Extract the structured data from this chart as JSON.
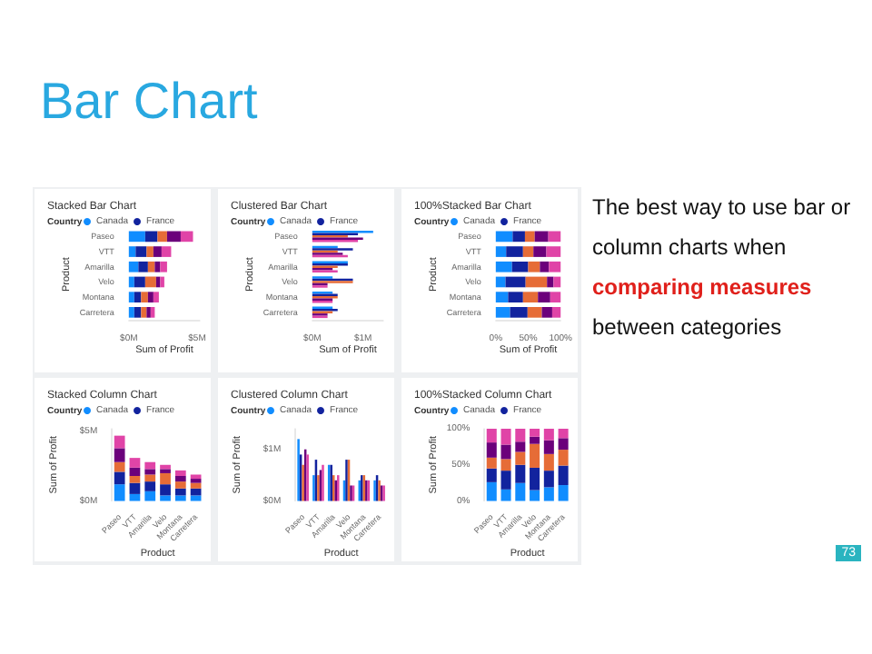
{
  "chart_data": [
    {
      "type": "other",
      "title": "Bar Chart",
      "annotations": [
        "The best way to use bar or column charts when",
        "comparing measures",
        "between categories",
        "73"
      ]
    },
    {
      "type": "bar",
      "orientation": "horizontal",
      "stacked": true,
      "title": "Stacked Bar Chart",
      "legend_title": "Country",
      "legend": "top left",
      "xlabel": "Sum of Profit",
      "ylabel": "Product",
      "categories": [
        "Paseo",
        "VTT",
        "Amarilla",
        "Velo",
        "Montana",
        "Carretera"
      ],
      "xlim": [
        0,
        5.2
      ],
      "xticks": [
        {
          "value": 0,
          "label": "$0M"
        },
        {
          "value": 5,
          "label": "$5M"
        }
      ],
      "series": [
        {
          "name": "Canada",
          "color": "#118dff",
          "values": [
            1.2,
            0.5,
            0.7,
            0.4,
            0.4,
            0.4
          ]
        },
        {
          "name": "France",
          "color": "#12239e",
          "values": [
            0.9,
            0.8,
            0.7,
            0.8,
            0.5,
            0.5
          ]
        },
        {
          "color": "#e66c37",
          "values": [
            0.7,
            0.5,
            0.5,
            0.8,
            0.5,
            0.4
          ]
        },
        {
          "color": "#6b007b",
          "values": [
            1.0,
            0.6,
            0.4,
            0.3,
            0.4,
            0.3
          ]
        },
        {
          "color": "#e044a7",
          "values": [
            0.9,
            0.7,
            0.5,
            0.3,
            0.4,
            0.3
          ]
        }
      ]
    },
    {
      "type": "bar",
      "orientation": "horizontal",
      "title": "Clustered Bar Chart",
      "legend_title": "Country",
      "legend": "top left",
      "xlabel": "Sum of Profit",
      "ylabel": "Product",
      "categories": [
        "Paseo",
        "VTT",
        "Amarilla",
        "Velo",
        "Montana",
        "Carretera"
      ],
      "xlim": [
        0,
        1.4
      ],
      "xticks": [
        {
          "value": 0,
          "label": "$0M"
        },
        {
          "value": 1,
          "label": "$1M"
        }
      ],
      "series": [
        {
          "name": "Canada",
          "color": "#118dff",
          "values": [
            1.2,
            0.5,
            0.7,
            0.4,
            0.4,
            0.4
          ]
        },
        {
          "name": "France",
          "color": "#12239e",
          "values": [
            0.9,
            0.8,
            0.7,
            0.8,
            0.5,
            0.5
          ]
        },
        {
          "color": "#e66c37",
          "values": [
            0.7,
            0.5,
            0.5,
            0.8,
            0.5,
            0.4
          ]
        },
        {
          "color": "#6b007b",
          "values": [
            1.0,
            0.6,
            0.4,
            0.3,
            0.4,
            0.3
          ]
        },
        {
          "color": "#e044a7",
          "values": [
            0.9,
            0.7,
            0.5,
            0.3,
            0.4,
            0.3
          ]
        }
      ]
    },
    {
      "type": "bar",
      "orientation": "horizontal",
      "stacked": true,
      "title": "100%Stacked Bar Chart",
      "legend_title": "Country",
      "legend": "top left",
      "xlabel": "Sum of Profit",
      "ylabel": "Product",
      "categories": [
        "Paseo",
        "VTT",
        "Amarilla",
        "Velo",
        "Montana",
        "Carretera"
      ],
      "xlim": [
        0,
        100
      ],
      "xticks": [
        {
          "value": 0,
          "label": "0%"
        },
        {
          "value": 50,
          "label": "50%"
        },
        {
          "value": 100,
          "label": "100%"
        }
      ],
      "series": [
        {
          "name": "Canada",
          "color": "#118dff",
          "values": [
            26,
            16,
            25,
            15,
            19,
            22
          ]
        },
        {
          "name": "France",
          "color": "#12239e",
          "values": [
            19,
            26,
            25,
            31,
            23,
            27
          ]
        },
        {
          "color": "#e66c37",
          "values": [
            15,
            16,
            18,
            33,
            23,
            22
          ]
        },
        {
          "color": "#6b007b",
          "values": [
            21,
            20,
            14,
            10,
            19,
            16
          ]
        },
        {
          "color": "#e044a7",
          "values": [
            19,
            22,
            18,
            11,
            16,
            13
          ]
        }
      ]
    },
    {
      "type": "bar",
      "stacked": true,
      "title": "Stacked Column Chart",
      "legend_title": "Country",
      "legend": "top left",
      "xlabel": "Product",
      "ylabel": "Sum of Profit",
      "categories": [
        "Paseo",
        "VTT",
        "Amarilla",
        "Velo",
        "Montana",
        "Carretera"
      ],
      "ylim": [
        0,
        5.2
      ],
      "yticks": [
        {
          "value": 0,
          "label": "$0M"
        },
        {
          "value": 5,
          "label": "$5M"
        }
      ],
      "series": [
        {
          "name": "Canada",
          "color": "#118dff",
          "values": [
            1.2,
            0.5,
            0.7,
            0.4,
            0.4,
            0.4
          ]
        },
        {
          "name": "France",
          "color": "#12239e",
          "values": [
            0.9,
            0.8,
            0.7,
            0.8,
            0.5,
            0.5
          ]
        },
        {
          "color": "#e66c37",
          "values": [
            0.7,
            0.5,
            0.5,
            0.8,
            0.5,
            0.4
          ]
        },
        {
          "color": "#6b007b",
          "values": [
            1.0,
            0.6,
            0.4,
            0.3,
            0.4,
            0.3
          ]
        },
        {
          "color": "#e044a7",
          "values": [
            0.9,
            0.7,
            0.5,
            0.3,
            0.4,
            0.3
          ]
        }
      ]
    },
    {
      "type": "bar",
      "title": "Clustered Column Chart",
      "legend_title": "Country",
      "legend": "top left",
      "xlabel": "Product",
      "ylabel": "Sum of Profit",
      "categories": [
        "Paseo",
        "VTT",
        "Amarilla",
        "Velo",
        "Montana",
        "Carretera"
      ],
      "ylim": [
        0,
        1.4
      ],
      "yticks": [
        {
          "value": 0,
          "label": "$0M"
        },
        {
          "value": 1,
          "label": "$1M"
        }
      ],
      "series": [
        {
          "name": "Canada",
          "color": "#118dff",
          "values": [
            1.2,
            0.5,
            0.7,
            0.4,
            0.4,
            0.4
          ]
        },
        {
          "name": "France",
          "color": "#12239e",
          "values": [
            0.9,
            0.8,
            0.7,
            0.8,
            0.5,
            0.5
          ]
        },
        {
          "color": "#e66c37",
          "values": [
            0.7,
            0.5,
            0.5,
            0.8,
            0.5,
            0.4
          ]
        },
        {
          "color": "#6b007b",
          "values": [
            1.0,
            0.6,
            0.4,
            0.3,
            0.4,
            0.3
          ]
        },
        {
          "color": "#e044a7",
          "values": [
            0.9,
            0.7,
            0.5,
            0.3,
            0.4,
            0.3
          ]
        }
      ]
    },
    {
      "type": "bar",
      "stacked": true,
      "title": "100%Stacked Column Chart",
      "legend_title": "Country",
      "legend": "top left",
      "xlabel": "Product",
      "ylabel": "Sum of Profit",
      "categories": [
        "Paseo",
        "VTT",
        "Amarilla",
        "Velo",
        "Montana",
        "Carretera"
      ],
      "ylim": [
        0,
        100
      ],
      "yticks": [
        {
          "value": 0,
          "label": "0%"
        },
        {
          "value": 50,
          "label": "50%"
        },
        {
          "value": 100,
          "label": "100%"
        }
      ],
      "series": [
        {
          "name": "Canada",
          "color": "#118dff",
          "values": [
            26,
            16,
            25,
            15,
            19,
            22
          ]
        },
        {
          "name": "France",
          "color": "#12239e",
          "values": [
            19,
            26,
            25,
            31,
            23,
            27
          ]
        },
        {
          "color": "#e66c37",
          "values": [
            15,
            16,
            18,
            33,
            23,
            22
          ]
        },
        {
          "color": "#6b007b",
          "values": [
            21,
            20,
            14,
            10,
            19,
            16
          ]
        },
        {
          "color": "#e044a7",
          "values": [
            19,
            22,
            18,
            11,
            16,
            13
          ]
        }
      ]
    }
  ]
}
